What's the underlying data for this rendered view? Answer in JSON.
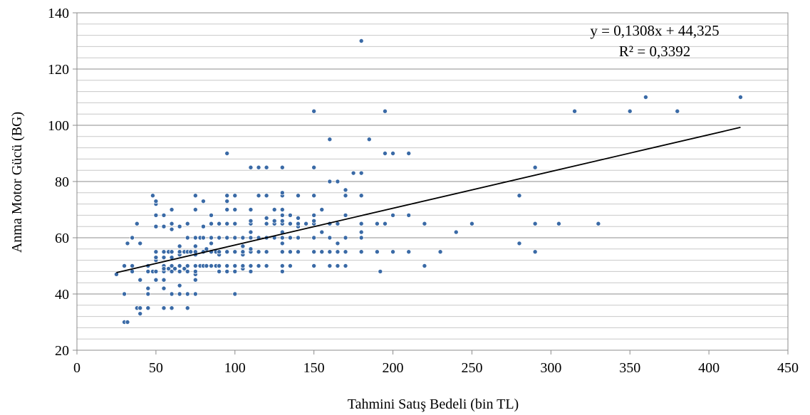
{
  "chart_data": {
    "type": "scatter",
    "xlabel": "Tahmini Satış Bedeli (bin TL)",
    "ylabel": "Anma Motor Gücü (BG)",
    "xlim": [
      0,
      450
    ],
    "ylim": [
      20,
      140
    ],
    "x_ticks": [
      "0",
      "50",
      "100",
      "150",
      "200",
      "250",
      "300",
      "350",
      "400",
      "450"
    ],
    "y_ticks": [
      "20",
      "40",
      "60",
      "80",
      "100",
      "120",
      "140"
    ],
    "y_major_step": 20,
    "y_minor_step": 4,
    "grid": true,
    "marker_color": "#3a6aa6",
    "trendline": {
      "slope": 0.1308,
      "intercept": 44.325,
      "x_range": [
        25,
        420
      ],
      "equation": "y = 0,1308x + 44,325",
      "r_squared": "R² = 0,3392"
    },
    "points": [
      [
        25,
        47
      ],
      [
        30,
        30
      ],
      [
        30,
        40
      ],
      [
        30,
        50
      ],
      [
        32,
        30
      ],
      [
        32,
        58
      ],
      [
        35,
        48
      ],
      [
        35,
        50
      ],
      [
        35,
        60
      ],
      [
        38,
        35
      ],
      [
        38,
        65
      ],
      [
        40,
        33
      ],
      [
        40,
        35
      ],
      [
        40,
        45
      ],
      [
        40,
        58
      ],
      [
        45,
        35
      ],
      [
        45,
        40
      ],
      [
        45,
        42
      ],
      [
        45,
        48
      ],
      [
        45,
        50
      ],
      [
        48,
        48
      ],
      [
        48,
        75
      ],
      [
        48,
        48
      ],
      [
        50,
        48
      ],
      [
        50,
        52
      ],
      [
        50,
        53
      ],
      [
        50,
        55
      ],
      [
        50,
        64
      ],
      [
        50,
        68
      ],
      [
        50,
        72
      ],
      [
        50,
        73
      ],
      [
        50,
        45
      ],
      [
        55,
        35
      ],
      [
        55,
        42
      ],
      [
        55,
        45
      ],
      [
        55,
        48
      ],
      [
        55,
        50
      ],
      [
        55,
        53
      ],
      [
        55,
        55
      ],
      [
        55,
        64
      ],
      [
        55,
        68
      ],
      [
        55,
        49
      ],
      [
        58,
        49
      ],
      [
        58,
        55
      ],
      [
        60,
        35
      ],
      [
        60,
        40
      ],
      [
        60,
        48
      ],
      [
        60,
        50
      ],
      [
        60,
        53
      ],
      [
        60,
        55
      ],
      [
        60,
        63
      ],
      [
        60,
        65
      ],
      [
        60,
        70
      ],
      [
        62,
        49
      ],
      [
        65,
        40
      ],
      [
        65,
        43
      ],
      [
        65,
        48
      ],
      [
        65,
        50
      ],
      [
        65,
        54
      ],
      [
        65,
        55
      ],
      [
        65,
        57
      ],
      [
        65,
        64
      ],
      [
        68,
        49
      ],
      [
        68,
        55
      ],
      [
        70,
        35
      ],
      [
        70,
        40
      ],
      [
        70,
        48
      ],
      [
        70,
        50
      ],
      [
        70,
        55
      ],
      [
        70,
        60
      ],
      [
        70,
        65
      ],
      [
        72,
        55
      ],
      [
        75,
        40
      ],
      [
        75,
        45
      ],
      [
        75,
        47
      ],
      [
        75,
        48
      ],
      [
        75,
        50
      ],
      [
        75,
        54
      ],
      [
        75,
        55
      ],
      [
        75,
        57
      ],
      [
        75,
        60
      ],
      [
        75,
        70
      ],
      [
        75,
        75
      ],
      [
        78,
        50
      ],
      [
        78,
        60
      ],
      [
        80,
        50
      ],
      [
        80,
        55
      ],
      [
        80,
        60
      ],
      [
        80,
        64
      ],
      [
        80,
        73
      ],
      [
        82,
        50
      ],
      [
        82,
        56
      ],
      [
        85,
        50
      ],
      [
        85,
        55
      ],
      [
        85,
        58
      ],
      [
        85,
        60
      ],
      [
        85,
        65
      ],
      [
        85,
        68
      ],
      [
        88,
        50
      ],
      [
        88,
        55
      ],
      [
        90,
        48
      ],
      [
        90,
        50
      ],
      [
        90,
        54
      ],
      [
        90,
        55
      ],
      [
        90,
        60
      ],
      [
        90,
        65
      ],
      [
        95,
        48
      ],
      [
        95,
        50
      ],
      [
        95,
        55
      ],
      [
        95,
        60
      ],
      [
        95,
        65
      ],
      [
        95,
        70
      ],
      [
        95,
        73
      ],
      [
        95,
        75
      ],
      [
        95,
        90
      ],
      [
        100,
        40
      ],
      [
        100,
        48
      ],
      [
        100,
        50
      ],
      [
        100,
        55
      ],
      [
        100,
        60
      ],
      [
        100,
        65
      ],
      [
        100,
        70
      ],
      [
        100,
        75
      ],
      [
        105,
        49
      ],
      [
        105,
        50
      ],
      [
        105,
        54
      ],
      [
        105,
        55
      ],
      [
        105,
        57
      ],
      [
        105,
        60
      ],
      [
        110,
        48
      ],
      [
        110,
        50
      ],
      [
        110,
        55
      ],
      [
        110,
        56
      ],
      [
        110,
        60
      ],
      [
        110,
        62
      ],
      [
        110,
        65
      ],
      [
        110,
        66
      ],
      [
        110,
        70
      ],
      [
        110,
        85
      ],
      [
        115,
        50
      ],
      [
        115,
        55
      ],
      [
        115,
        60
      ],
      [
        115,
        75
      ],
      [
        115,
        85
      ],
      [
        120,
        50
      ],
      [
        120,
        55
      ],
      [
        120,
        60
      ],
      [
        120,
        65
      ],
      [
        120,
        67
      ],
      [
        120,
        75
      ],
      [
        120,
        85
      ],
      [
        125,
        60
      ],
      [
        125,
        65
      ],
      [
        125,
        66
      ],
      [
        125,
        70
      ],
      [
        130,
        48
      ],
      [
        130,
        50
      ],
      [
        130,
        55
      ],
      [
        130,
        58
      ],
      [
        130,
        60
      ],
      [
        130,
        62
      ],
      [
        130,
        65
      ],
      [
        130,
        66
      ],
      [
        130,
        68
      ],
      [
        130,
        70
      ],
      [
        130,
        75
      ],
      [
        130,
        76
      ],
      [
        130,
        85
      ],
      [
        135,
        50
      ],
      [
        135,
        55
      ],
      [
        135,
        60
      ],
      [
        135,
        65
      ],
      [
        135,
        68
      ],
      [
        140,
        55
      ],
      [
        140,
        60
      ],
      [
        140,
        64
      ],
      [
        140,
        65
      ],
      [
        140,
        67
      ],
      [
        140,
        75
      ],
      [
        145,
        65
      ],
      [
        150,
        50
      ],
      [
        150,
        55
      ],
      [
        150,
        60
      ],
      [
        150,
        65
      ],
      [
        150,
        66
      ],
      [
        150,
        68
      ],
      [
        150,
        75
      ],
      [
        150,
        85
      ],
      [
        150,
        105
      ],
      [
        155,
        55
      ],
      [
        155,
        62
      ],
      [
        155,
        70
      ],
      [
        160,
        50
      ],
      [
        160,
        55
      ],
      [
        160,
        60
      ],
      [
        160,
        65
      ],
      [
        160,
        80
      ],
      [
        160,
        95
      ],
      [
        165,
        50
      ],
      [
        165,
        55
      ],
      [
        165,
        58
      ],
      [
        165,
        65
      ],
      [
        165,
        80
      ],
      [
        170,
        50
      ],
      [
        170,
        55
      ],
      [
        170,
        60
      ],
      [
        170,
        68
      ],
      [
        170,
        75
      ],
      [
        170,
        77
      ],
      [
        175,
        83
      ],
      [
        180,
        55
      ],
      [
        180,
        60
      ],
      [
        180,
        62
      ],
      [
        180,
        65
      ],
      [
        180,
        75
      ],
      [
        180,
        83
      ],
      [
        180,
        130
      ],
      [
        185,
        95
      ],
      [
        190,
        55
      ],
      [
        190,
        65
      ],
      [
        192,
        48
      ],
      [
        195,
        65
      ],
      [
        195,
        90
      ],
      [
        195,
        105
      ],
      [
        200,
        55
      ],
      [
        200,
        68
      ],
      [
        200,
        90
      ],
      [
        210,
        55
      ],
      [
        210,
        68
      ],
      [
        210,
        90
      ],
      [
        220,
        50
      ],
      [
        220,
        65
      ],
      [
        230,
        55
      ],
      [
        240,
        62
      ],
      [
        250,
        65
      ],
      [
        280,
        58
      ],
      [
        280,
        75
      ],
      [
        290,
        55
      ],
      [
        290,
        65
      ],
      [
        290,
        85
      ],
      [
        305,
        65
      ],
      [
        315,
        105
      ],
      [
        330,
        65
      ],
      [
        350,
        105
      ],
      [
        360,
        110
      ],
      [
        380,
        105
      ],
      [
        420,
        110
      ]
    ]
  }
}
